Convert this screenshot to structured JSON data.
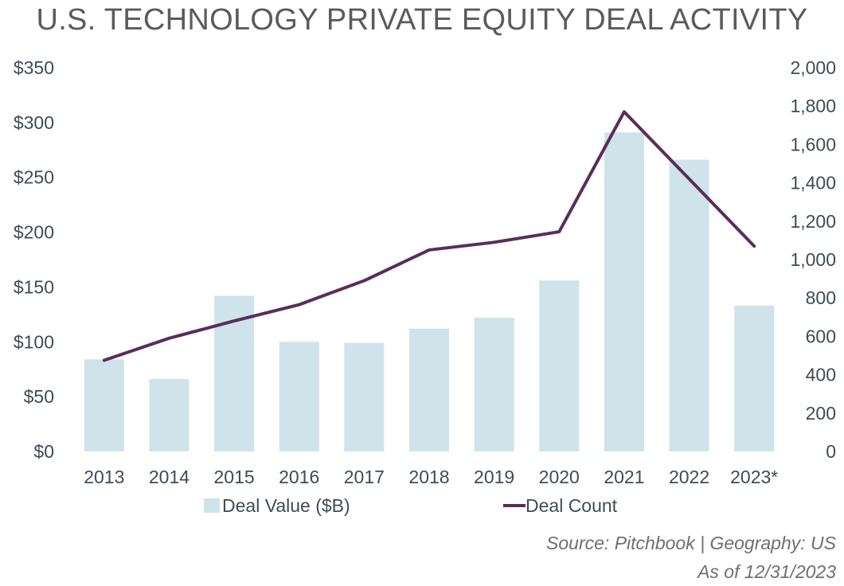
{
  "chart_data": {
    "type": "bar+line",
    "title": "U.S. TECHNOLOGY PRIVATE EQUITY DEAL ACTIVITY",
    "categories": [
      "2013",
      "2014",
      "2015",
      "2016",
      "2017",
      "2018",
      "2019",
      "2020",
      "2021",
      "2022",
      "2023*"
    ],
    "series": [
      {
        "name": "Deal Value ($B)",
        "type": "bar",
        "axis": "left",
        "color": "#cfe3ea",
        "values": [
          84,
          66,
          142,
          100,
          99,
          112,
          122,
          156,
          291,
          266,
          133
        ]
      },
      {
        "name": "Deal Count",
        "type": "line",
        "axis": "right",
        "color": "#5a2d5c",
        "values": [
          475,
          590,
          680,
          765,
          890,
          1050,
          1090,
          1145,
          1770,
          1420,
          1070
        ]
      }
    ],
    "y_left": {
      "ylim": [
        0,
        350
      ],
      "ticks": [
        "$0",
        "$50",
        "$100",
        "$150",
        "$200",
        "$250",
        "$300",
        "$350"
      ],
      "values": [
        0,
        50,
        100,
        150,
        200,
        250,
        300,
        350
      ]
    },
    "y_right": {
      "ylim": [
        0,
        2000
      ],
      "ticks": [
        "0",
        "200",
        "400",
        "600",
        "800",
        "1,000",
        "1,200",
        "1,400",
        "1,600",
        "1,800",
        "2,000"
      ],
      "values": [
        0,
        200,
        400,
        600,
        800,
        1000,
        1200,
        1400,
        1600,
        1800,
        2000
      ]
    },
    "legend": {
      "position": "bottom",
      "items": [
        "Deal Value ($B)",
        "Deal Count"
      ]
    },
    "grid": false
  },
  "source": {
    "line1": "Source: Pitchbook | Geography: US",
    "line2": "As of 12/31/2023"
  }
}
